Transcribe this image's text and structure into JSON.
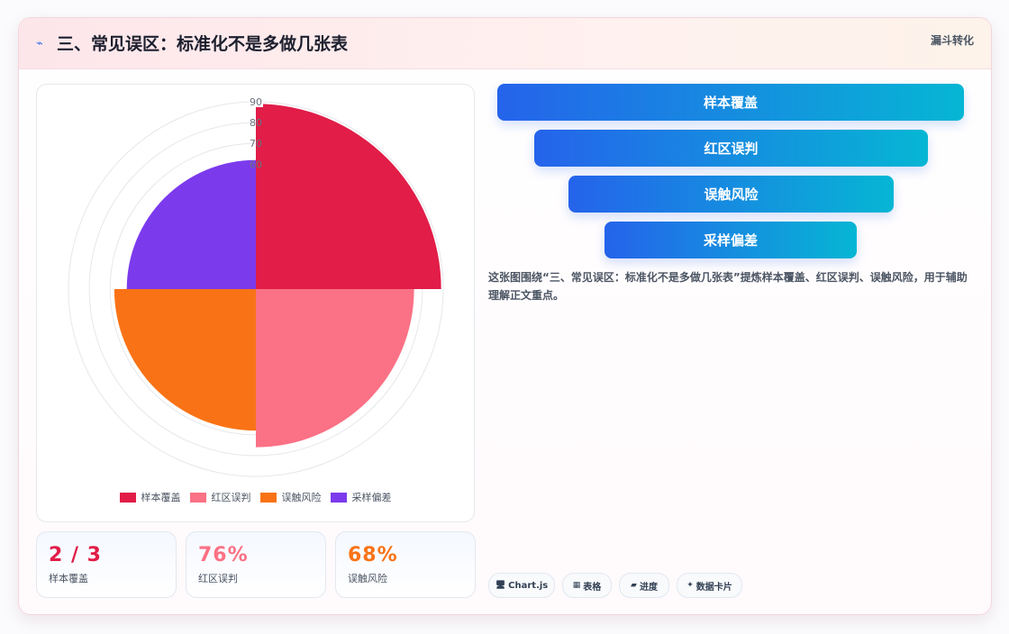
{
  "header": {
    "icon": "⌁",
    "title": "三、常见误区：标准化不是多做几张表",
    "tag": "漏斗转化"
  },
  "chart_data": {
    "type": "polarArea",
    "categories": [
      "样本覆盖",
      "红区误判",
      "误触风险",
      "采样偏差"
    ],
    "values": [
      89,
      76,
      68,
      62
    ],
    "colors": [
      "#e11d48",
      "#fb7185",
      "#f97316",
      "#7c3aed"
    ],
    "r_ticks": [
      "90",
      "80",
      "70",
      "60"
    ],
    "r_max": 90,
    "legend_position": "bottom"
  },
  "stats": [
    {
      "value": "2 / 3",
      "label": "样本覆盖",
      "color": "#e11d48"
    },
    {
      "value": "76%",
      "label": "红区误判",
      "color": "#fb7185"
    },
    {
      "value": "68%",
      "label": "误触风险",
      "color": "#f97316"
    }
  ],
  "funnel": [
    {
      "label": "样本覆盖"
    },
    {
      "label": "红区误判"
    },
    {
      "label": "误触风险"
    },
    {
      "label": "采样偏差"
    }
  ],
  "description": "这张图围绕“三、常见误区：标准化不是多做几张表”提炼样本覆盖、红区误判、误触风险，用于辅助理解正文重点。",
  "chips": [
    {
      "icon": "🖥",
      "label": "Chart.js"
    },
    {
      "icon": "▦",
      "label": "表格"
    },
    {
      "icon": "▰",
      "label": "进度"
    },
    {
      "icon": "✦",
      "label": "数据卡片"
    }
  ]
}
